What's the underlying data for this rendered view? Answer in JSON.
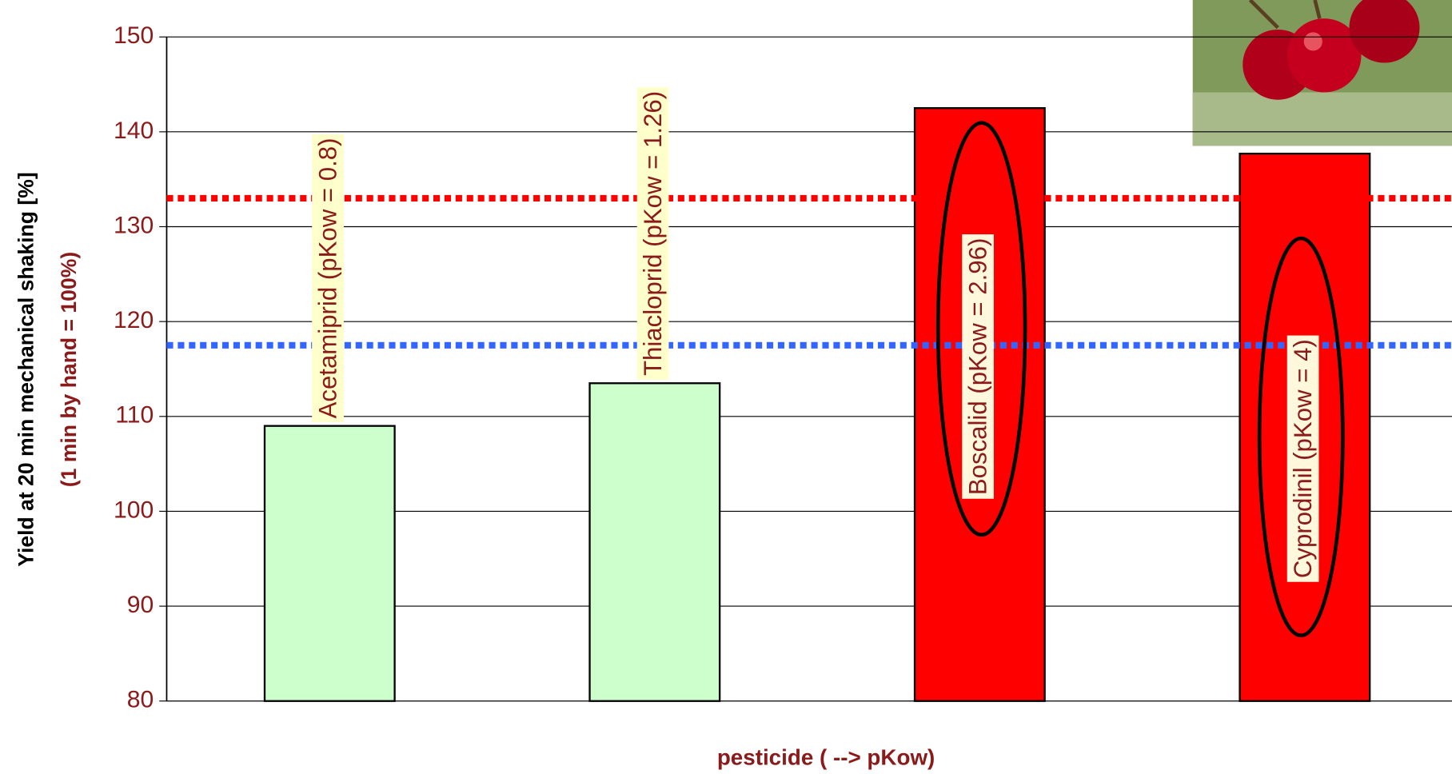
{
  "chart_data": {
    "type": "bar",
    "x_label": "pesticide ( --> pKow)",
    "y_label": [
      "Yield at 20 min mechanical shaking [%]",
      "(1 min by hand = 100%)"
    ],
    "categories": [
      "Acetamiprid (pKow = 0.8)",
      "Thiacloprid (pKow = 1.26)",
      "Boscalid (pKow = 2.96)",
      "Cyprodinil (pKow = 4)"
    ],
    "values": [
      109,
      113.5,
      142.5,
      137.7
    ],
    "colors": [
      "#ccffcc",
      "#ccffcc",
      "#ff0000",
      "#ff0000"
    ],
    "ylim": [
      80,
      150
    ],
    "yticks": [
      80,
      90,
      100,
      110,
      120,
      130,
      140,
      150
    ],
    "grid": true,
    "reference_lines": [
      {
        "value": 133,
        "color": "#ff0000"
      },
      {
        "value": 117.5,
        "color": "#3366ff"
      }
    ]
  }
}
